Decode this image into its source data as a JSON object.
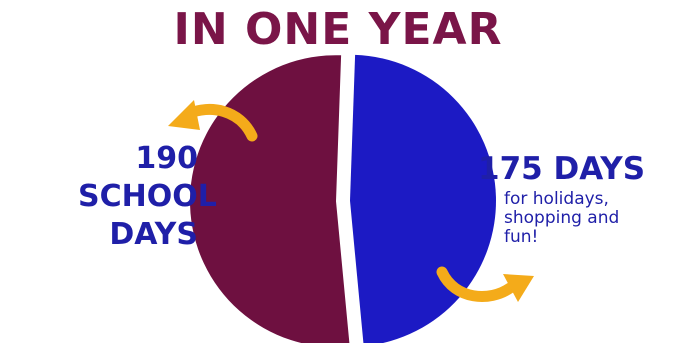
{
  "chart_data": {
    "type": "pie",
    "title": "IN ONE YEAR",
    "slices": [
      {
        "value": 190,
        "label_number": "190",
        "label_lines": [
          "SCHOOL",
          "DAYS"
        ],
        "color": "#6e1040"
      },
      {
        "value": 175,
        "label_number": "175 DAYS",
        "caption_lines": [
          "for holidays,",
          "shopping and",
          "fun!"
        ],
        "color": "#1c1ac4"
      }
    ]
  },
  "colors": {
    "title": "#7a1548",
    "label": "#1f1fa8",
    "arrow": "#f4ab1a"
  },
  "icons": {
    "left_arrow": "curved-arrow-icon",
    "right_arrow": "curved-arrow-icon"
  }
}
